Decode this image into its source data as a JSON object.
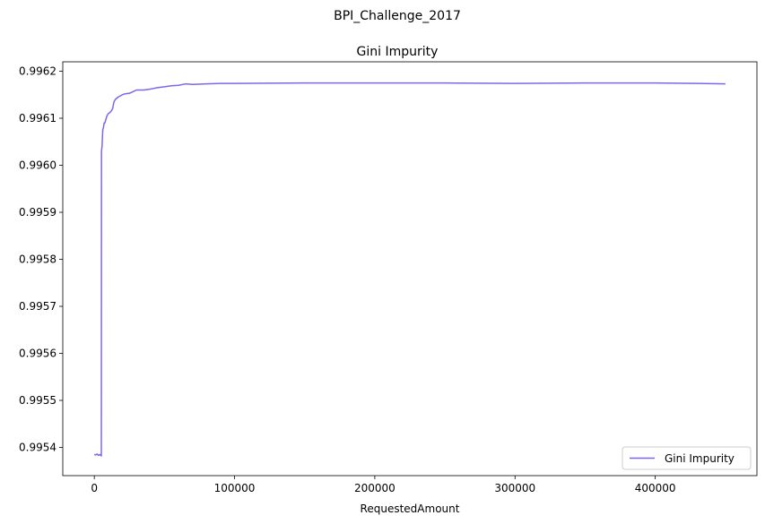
{
  "suptitle": "BPI_Challenge_2017",
  "chart_data": {
    "type": "line",
    "title": "Gini Impurity",
    "xlabel": "RequestedAmount",
    "ylabel": "",
    "xlim": [
      -22500,
      472500
    ],
    "ylim": [
      0.99534,
      0.99622
    ],
    "x_ticks": [
      0,
      100000,
      200000,
      300000,
      400000
    ],
    "x_tick_labels": [
      "0",
      "100000",
      "200000",
      "300000",
      "400000"
    ],
    "y_ticks": [
      0.9954,
      0.9955,
      0.9956,
      0.9957,
      0.9958,
      0.9959,
      0.996,
      0.9961,
      0.9962
    ],
    "y_tick_labels": [
      "0.9954",
      "0.9955",
      "0.9956",
      "0.9957",
      "0.9958",
      "0.9959",
      "0.9960",
      "0.9961",
      "0.9962"
    ],
    "grid": false,
    "legend_position": "lower-right",
    "series": [
      {
        "name": "Gini Impurity",
        "color": "#7b68ee",
        "points": [
          [
            0,
            0.995385
          ],
          [
            1000,
            0.995384
          ],
          [
            2000,
            0.995386
          ],
          [
            3000,
            0.995383
          ],
          [
            4000,
            0.995385
          ],
          [
            5000,
            0.995382
          ],
          [
            5100,
            0.99603
          ],
          [
            5500,
            0.99604
          ],
          [
            6000,
            0.996075
          ],
          [
            6500,
            0.99608
          ],
          [
            7000,
            0.99609
          ],
          [
            7500,
            0.99609
          ],
          [
            8000,
            0.996095
          ],
          [
            9000,
            0.996105
          ],
          [
            10000,
            0.99611
          ],
          [
            11000,
            0.996112
          ],
          [
            12000,
            0.996115
          ],
          [
            13000,
            0.99612
          ],
          [
            14000,
            0.996135
          ],
          [
            15000,
            0.99614
          ],
          [
            17000,
            0.996145
          ],
          [
            20000,
            0.99615
          ],
          [
            22000,
            0.996152
          ],
          [
            25000,
            0.996153
          ],
          [
            28000,
            0.996157
          ],
          [
            30000,
            0.99616
          ],
          [
            35000,
            0.99616
          ],
          [
            40000,
            0.996162
          ],
          [
            45000,
            0.996165
          ],
          [
            50000,
            0.996167
          ],
          [
            55000,
            0.996169
          ],
          [
            60000,
            0.99617
          ],
          [
            65000,
            0.996173
          ],
          [
            70000,
            0.996172
          ],
          [
            80000,
            0.996173
          ],
          [
            90000,
            0.996174
          ],
          [
            100000,
            0.996174
          ],
          [
            150000,
            0.996175
          ],
          [
            200000,
            0.996175
          ],
          [
            250000,
            0.996175
          ],
          [
            300000,
            0.996174
          ],
          [
            350000,
            0.996175
          ],
          [
            400000,
            0.996175
          ],
          [
            430000,
            0.996174
          ],
          [
            450000,
            0.996173
          ]
        ]
      }
    ]
  }
}
